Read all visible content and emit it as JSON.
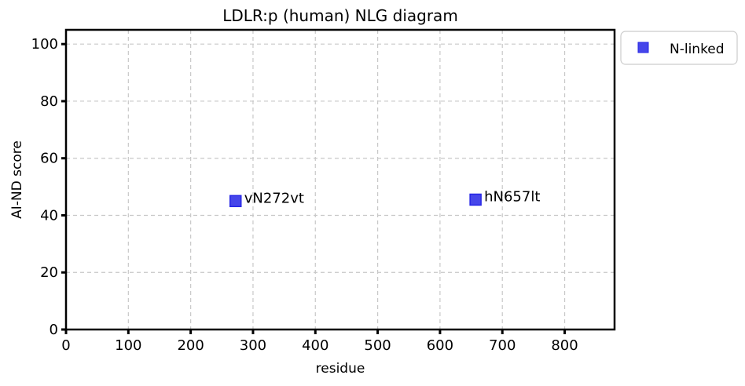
{
  "chart_data": {
    "type": "scatter",
    "title": "LDLR:p (human) NLG diagram",
    "xlabel": "residue",
    "ylabel": "AI-ND score",
    "xlim": [
      0,
      880
    ],
    "ylim": [
      0,
      105
    ],
    "xticks": [
      0,
      100,
      200,
      300,
      400,
      500,
      600,
      700,
      800
    ],
    "yticks": [
      0,
      20,
      40,
      60,
      80,
      100
    ],
    "grid": true,
    "legend_position": "outside-top-right",
    "series": [
      {
        "name": "N-linked",
        "color": "#2626e6",
        "marker": "square",
        "points": [
          {
            "x": 272,
            "y": 45,
            "label": "vN272vt"
          },
          {
            "x": 657,
            "y": 45.5,
            "label": "hN657lt"
          }
        ]
      }
    ]
  }
}
